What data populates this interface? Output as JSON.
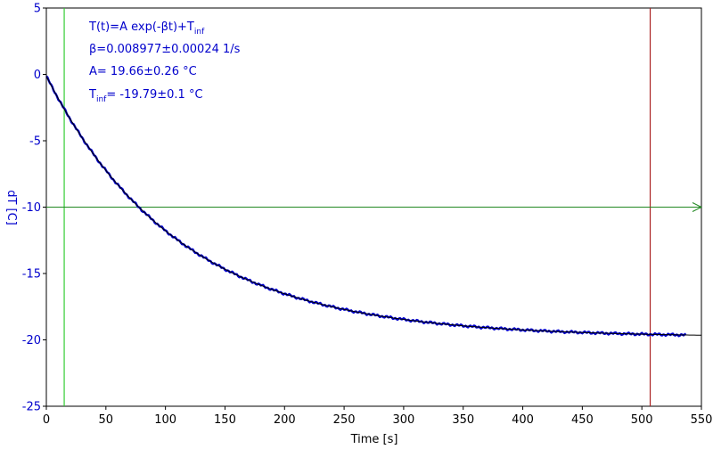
{
  "chart_data": {
    "type": "line",
    "xlabel": "Time [s]",
    "ylabel": "dT [C]",
    "xlim": [
      0,
      550
    ],
    "ylim": [
      -25,
      5
    ],
    "x_ticks": [
      0,
      50,
      100,
      150,
      200,
      250,
      300,
      350,
      400,
      450,
      500,
      550
    ],
    "y_ticks": [
      5,
      0,
      -5,
      -10,
      -15,
      -20,
      -25
    ],
    "grid": false,
    "annotations": {
      "line1_main": "T(t)=A exp(-βt)+T",
      "line1_sub": "inf",
      "line2": "β=0.008977±0.00024 1/s",
      "line3": "A= 19.66±0.26 °C",
      "line4_main": "T",
      "line4_sub": "inf",
      "line4_rest": "= -19.79±0.1 °C"
    },
    "fit": {
      "A": 19.66,
      "beta": 0.008977,
      "T_inf": -19.79
    },
    "series": [
      {
        "style": "measured",
        "color": "#0000cc",
        "x_range": [
          0,
          537
        ]
      },
      {
        "style": "fit",
        "color": "#000000",
        "x_range": [
          0,
          550
        ]
      }
    ],
    "markers": {
      "vertical_green_x": 15,
      "vertical_red_x": 507,
      "horizontal_green_y": -10
    },
    "colors": {
      "data": "#0000cc",
      "fit": "#000000",
      "axis_text": "#0000cc",
      "green_marker": "#33cc33",
      "red_marker": "#aa2222",
      "hline": "#228822"
    }
  }
}
